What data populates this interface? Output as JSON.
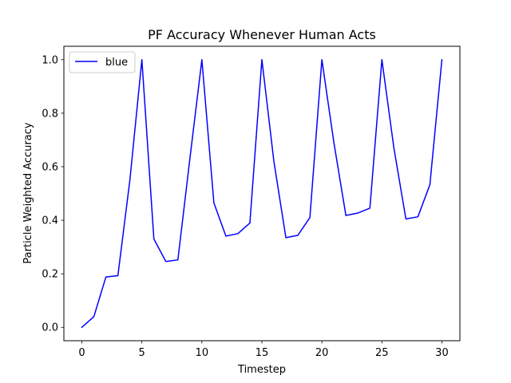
{
  "chart_data": {
    "type": "line",
    "title": "PF Accuracy Whenever Human Acts",
    "xlabel": "Timestep",
    "ylabel": "Particle Weighted Accuracy",
    "xlim": [
      -1.5,
      31.5
    ],
    "ylim": [
      -0.05,
      1.05
    ],
    "x_ticks": [
      0,
      5,
      10,
      15,
      20,
      25,
      30
    ],
    "x_tick_labels": [
      "0",
      "5",
      "10",
      "15",
      "20",
      "25",
      "30"
    ],
    "y_ticks": [
      0.0,
      0.2,
      0.4,
      0.6,
      0.8,
      1.0
    ],
    "y_tick_labels": [
      "0.0",
      "0.2",
      "0.4",
      "0.6",
      "0.8",
      "1.0"
    ],
    "grid": false,
    "legend_position": "top-left",
    "x": [
      0,
      1,
      2,
      3,
      4,
      5,
      6,
      7,
      8,
      9,
      10,
      11,
      12,
      13,
      14,
      15,
      16,
      17,
      18,
      19,
      20,
      21,
      22,
      23,
      24,
      25,
      26,
      27,
      28,
      29,
      30
    ],
    "series": [
      {
        "name": "blue",
        "color": "#0000ff",
        "values": [
          0.0,
          0.04,
          0.188,
          0.193,
          0.55,
          1.0,
          0.33,
          0.246,
          0.252,
          0.63,
          1.0,
          0.465,
          0.341,
          0.35,
          0.39,
          1.0,
          0.62,
          0.335,
          0.344,
          0.41,
          1.0,
          0.69,
          0.418,
          0.427,
          0.445,
          1.0,
          0.67,
          0.405,
          0.413,
          0.533,
          1.0
        ]
      }
    ]
  }
}
